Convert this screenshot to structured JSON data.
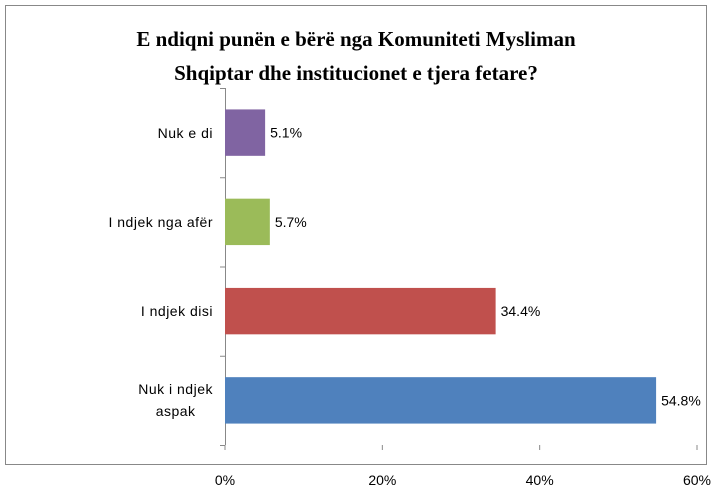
{
  "chart_data": {
    "type": "bar",
    "orientation": "horizontal",
    "title": "E ndiqni punën e bërë nga Komuniteti Mysliman\nShqiptar dhe institucionet e tjera fetare?",
    "categories": [
      "Nuk e di",
      "I ndjek nga afër",
      "I ndjek disi",
      "Nuk i ndjek\naspak"
    ],
    "values": [
      5.1,
      5.7,
      34.4,
      54.8
    ],
    "value_labels": [
      "5.1%",
      "5.7%",
      "34.4%",
      "54.8%"
    ],
    "colors": [
      "#8064a2",
      "#9bbb59",
      "#c0504d",
      "#4f81bd"
    ],
    "xlim": [
      0,
      60
    ],
    "xticks": [
      {
        "value": 0,
        "label": "0%"
      },
      {
        "value": 20,
        "label": "20%"
      },
      {
        "value": 40,
        "label": "40%"
      },
      {
        "value": 60,
        "label": "60%"
      }
    ],
    "grid": false
  }
}
